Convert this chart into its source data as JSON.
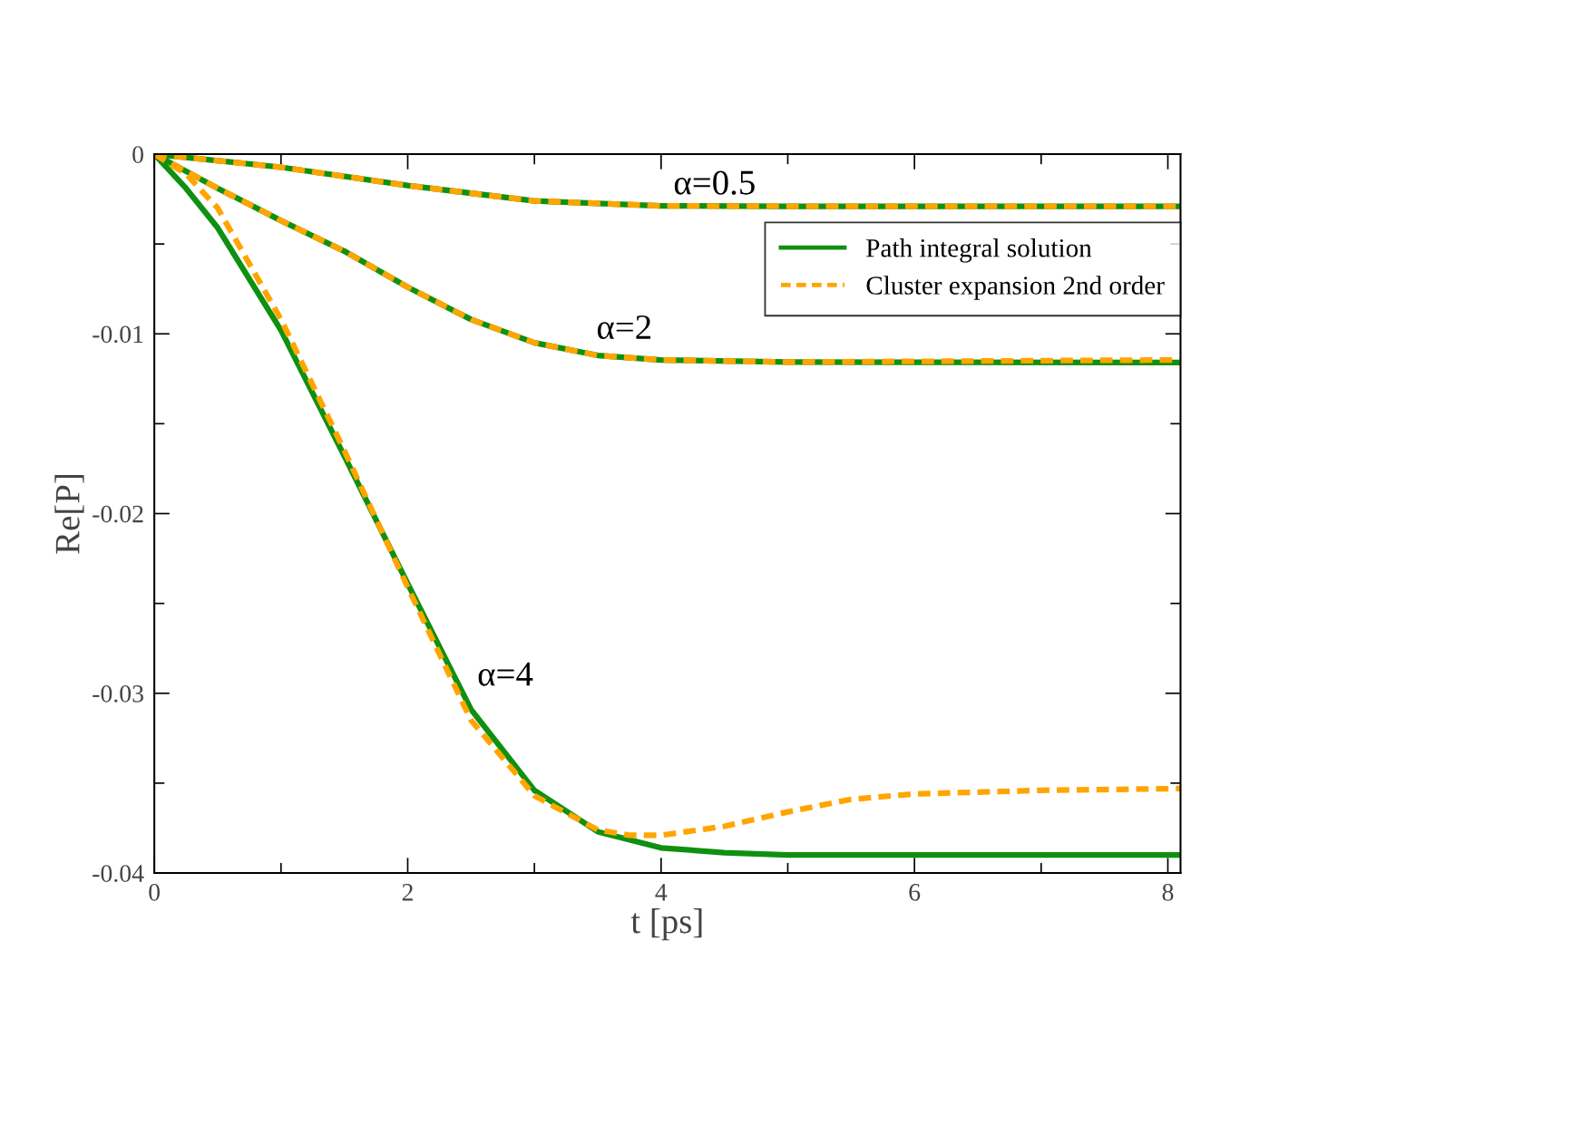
{
  "chart_data": {
    "type": "line",
    "xlabel": "t [ps]",
    "ylabel": "Re[P]",
    "xlim": [
      0,
      8.1
    ],
    "ylim": [
      -0.04,
      0
    ],
    "xticks": [
      0,
      {
        "value": 1,
        "label": null
      },
      2,
      {
        "value": 3,
        "label": null
      },
      4,
      {
        "value": 5,
        "label": null
      },
      6,
      {
        "value": 7,
        "label": null
      },
      8
    ],
    "yticks": [
      -0.04,
      {
        "value": -0.035,
        "label": null
      },
      -0.03,
      {
        "value": -0.025,
        "label": null
      },
      -0.02,
      {
        "value": -0.015,
        "label": null
      },
      -0.01,
      {
        "value": -0.005,
        "label": null
      },
      0
    ],
    "grid": false,
    "legend": "top right",
    "marker": "none",
    "annotations": [
      "α=0.5",
      "α=2",
      "α=4"
    ],
    "series": [
      {
        "name": "Path integral solution",
        "color": "#109010",
        "line_style": "solid",
        "x": [
          0,
          1,
          2,
          3,
          4,
          5,
          8.1
        ],
        "values": [
          0,
          -0.00073,
          -0.00175,
          -0.0026,
          -0.00288,
          -0.0029,
          -0.0029
        ]
      },
      {
        "name": "Cluster expansion 2nd order",
        "color": "#ffa500",
        "line_style": "dashed",
        "x": [
          0,
          1,
          2,
          3,
          4,
          5,
          8.1
        ],
        "values": [
          0,
          -0.00073,
          -0.00175,
          -0.0026,
          -0.00288,
          -0.0029,
          -0.0029
        ]
      },
      {
        "color": "#109010",
        "line_style": "solid",
        "x": [
          0,
          0.5,
          1,
          1.5,
          2,
          2.5,
          3,
          3.5,
          4,
          5,
          8.1
        ],
        "values": [
          0,
          -0.0019,
          -0.0037,
          -0.0054,
          -0.0074,
          -0.0092,
          -0.0105,
          -0.0112,
          -0.01145,
          -0.01157,
          -0.0116
        ]
      },
      {
        "color": "#ffa500",
        "line_style": "dashed",
        "x": [
          0,
          0.5,
          1,
          1.5,
          2,
          2.5,
          3,
          3.5,
          4,
          5,
          8.1
        ],
        "values": [
          0,
          -0.0019,
          -0.0037,
          -0.0054,
          -0.0074,
          -0.0092,
          -0.0105,
          -0.0112,
          -0.01145,
          -0.01157,
          -0.01145
        ]
      },
      {
        "color": "#109010",
        "line_style": "solid",
        "x": [
          0,
          0.25,
          0.5,
          1,
          1.5,
          2,
          2.5,
          3,
          3.5,
          4,
          4.5,
          5,
          8.1
        ],
        "values": [
          0,
          -0.0019,
          -0.0041,
          -0.0098,
          -0.0168,
          -0.0239,
          -0.0309,
          -0.0354,
          -0.0377,
          -0.0386,
          -0.03887,
          -0.039,
          -0.039
        ]
      },
      {
        "color": "#ffa500",
        "line_style": "dashed",
        "x": [
          0,
          0.25,
          0.5,
          1,
          1.5,
          2,
          2.5,
          3,
          3.5,
          3.75,
          4,
          4.5,
          5,
          5.5,
          6,
          7,
          8.1
        ],
        "values": [
          0,
          -0.0011,
          -0.003,
          -0.0092,
          -0.0165,
          -0.0241,
          -0.0315,
          -0.0357,
          -0.0376,
          -0.0379,
          -0.0379,
          -0.0374,
          -0.0366,
          -0.0359,
          -0.0356,
          -0.0354,
          -0.0353
        ]
      }
    ]
  }
}
